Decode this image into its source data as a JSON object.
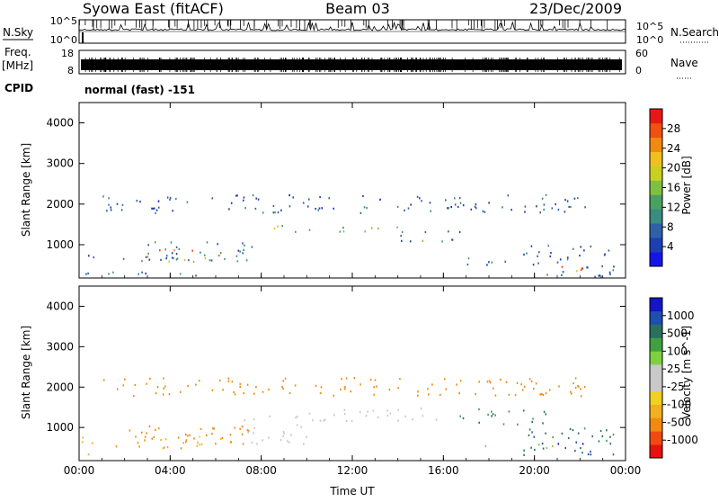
{
  "header": {
    "station": "Syowa East (fitACF)",
    "beam": "Beam 03",
    "date": "23/Dec/2009"
  },
  "left_labels": {
    "nsky": "N.Sky",
    "freq_line1": "Freq.",
    "freq_line2": "[MHz]",
    "cpid": "CPID"
  },
  "right_labels": {
    "nsearch": "N.Search",
    "nave": "Nave"
  },
  "noise_panel": {
    "y_top_label": "10^5",
    "y_bottom_label": "10^0",
    "right_top_label": "10^5",
    "right_bottom_label": "10^0"
  },
  "freq_panel": {
    "left_top_label": "18",
    "left_bottom_label": "8",
    "right_top_label": "60",
    "right_bottom_label": "0"
  },
  "cpid_text": "normal (fast) -151",
  "chart_data": [
    {
      "type": "heatmap",
      "panel": "power",
      "ylabel": "Slant Range [km]",
      "xlabel": "",
      "x_ticks": [
        "00:00",
        "04:00",
        "08:00",
        "12:00",
        "16:00",
        "20:00",
        "00:00"
      ],
      "x_range_hours": [
        0,
        24
      ],
      "y_ticks": [
        1000,
        2000,
        3000,
        4000
      ],
      "ylim": [
        180,
        4500
      ],
      "colorbar": {
        "label": "Power [dB]",
        "ticks": [
          "4",
          "8",
          "12",
          "16",
          "20",
          "24",
          "28"
        ],
        "range": [
          0,
          30
        ],
        "colors": [
          "#1515e8",
          "#1e3fb4",
          "#2d62a8",
          "#3a8c80",
          "#4aa060",
          "#7fc040",
          "#c8d020",
          "#f0c020",
          "#f08a10",
          "#f05010",
          "#e81818"
        ]
      },
      "echo_regions": [
        {
          "t0": 0.1,
          "t1": 0.9,
          "r0": 300,
          "r1": 800,
          "level": 5
        },
        {
          "t0": 1.5,
          "t1": 7.8,
          "r0": 600,
          "r1": 1100,
          "level": 8
        },
        {
          "t0": 2.5,
          "t1": 6.5,
          "r0": 600,
          "r1": 900,
          "level": 20
        },
        {
          "t0": 1.0,
          "t1": 7.0,
          "r0": 250,
          "r1": 350,
          "level": 10
        },
        {
          "t0": 8.5,
          "t1": 14.5,
          "r0": 1300,
          "r1": 1500,
          "level": 12
        },
        {
          "t0": 14.0,
          "t1": 17.0,
          "r0": 1100,
          "r1": 1400,
          "level": 10
        },
        {
          "t0": 17.0,
          "t1": 19.5,
          "r0": 500,
          "r1": 700,
          "level": 8
        },
        {
          "t0": 19.5,
          "t1": 23.5,
          "r0": 200,
          "r1": 1000,
          "level": 6
        },
        {
          "t0": 20.5,
          "t1": 22.5,
          "r0": 250,
          "r1": 500,
          "level": 22
        },
        {
          "t0": 1.0,
          "t1": 22.5,
          "r0": 1800,
          "r1": 2250,
          "level": 6
        }
      ]
    },
    {
      "type": "heatmap",
      "panel": "velocity",
      "ylabel": "Slant Range [km]",
      "xlabel": "Time UT",
      "x_ticks": [
        "00:00",
        "04:00",
        "08:00",
        "12:00",
        "16:00",
        "20:00",
        "00:00"
      ],
      "x_range_hours": [
        0,
        24
      ],
      "y_ticks": [
        1000,
        2000,
        3000,
        4000
      ],
      "ylim": [
        180,
        4500
      ],
      "colorbar": {
        "label": "Velocity [m s^-1]",
        "ticks": [
          "1000",
          "500",
          "100",
          "25",
          "-25",
          "-100",
          "-500",
          "-1000"
        ],
        "range": [
          -1200,
          1200
        ],
        "colors": [
          "#e81010",
          "#f04a10",
          "#f08a10",
          "#f0b020",
          "#f0d020",
          "#c8c8c8",
          "#c8c8c8",
          "#7ed040",
          "#40a040",
          "#2a7060",
          "#1e4fb0",
          "#1515c8"
        ]
      },
      "echo_regions": [
        {
          "t0": 0.1,
          "t1": 0.9,
          "r0": 300,
          "r1": 800,
          "level": -80
        },
        {
          "t0": 1.5,
          "t1": 7.5,
          "r0": 500,
          "r1": 1100,
          "level": -300
        },
        {
          "t0": 3.5,
          "t1": 7.0,
          "r0": 500,
          "r1": 800,
          "level": -60
        },
        {
          "t0": 7.0,
          "t1": 10.0,
          "r0": 600,
          "r1": 1300,
          "level": 0
        },
        {
          "t0": 10.0,
          "t1": 16.5,
          "r0": 1150,
          "r1": 1500,
          "level": 0
        },
        {
          "t0": 16.5,
          "t1": 20.5,
          "r0": 1100,
          "r1": 1500,
          "level": 300
        },
        {
          "t0": 17.5,
          "t1": 21.0,
          "r0": 500,
          "r1": 600,
          "level": 60
        },
        {
          "t0": 19.5,
          "t1": 23.5,
          "r0": 300,
          "r1": 1000,
          "level": 400
        },
        {
          "t0": 21.0,
          "t1": 22.5,
          "r0": 300,
          "r1": 700,
          "level": 900
        },
        {
          "t0": 1.0,
          "t1": 22.5,
          "r0": 1800,
          "r1": 2250,
          "level": -200
        }
      ]
    }
  ]
}
